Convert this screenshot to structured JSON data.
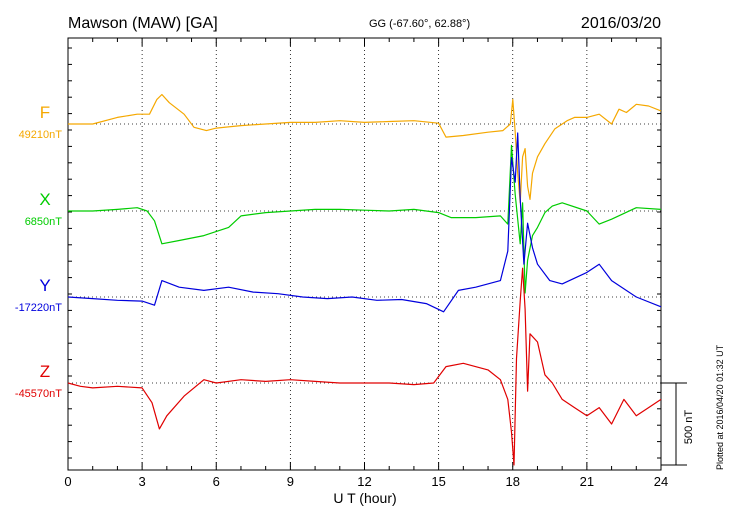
{
  "header": {
    "station": "Mawson (MAW)  [GA]",
    "coords": "GG (-67.60°,  62.88°)",
    "date": "2016/03/20"
  },
  "side_note": "Plotted at 2016/04/20 01:32 UT",
  "chart_data": {
    "type": "line",
    "xlabel": "U T (hour)",
    "xlim": [
      0,
      24
    ],
    "xticks": [
      "0",
      "3",
      "6",
      "9",
      "12",
      "15",
      "18",
      "21",
      "24"
    ],
    "scale_bar_label": "500 nT",
    "scale_bar_nT": 500,
    "series": [
      {
        "name": "F",
        "baseline": "49210nT",
        "color": "#f5a800",
        "points": [
          [
            0,
            0
          ],
          [
            1,
            0
          ],
          [
            2,
            40
          ],
          [
            2.8,
            60
          ],
          [
            3.3,
            60
          ],
          [
            3.6,
            150
          ],
          [
            3.8,
            180
          ],
          [
            4.1,
            130
          ],
          [
            4.7,
            60
          ],
          [
            5.1,
            -20
          ],
          [
            5.6,
            -40
          ],
          [
            6,
            -25
          ],
          [
            7,
            -10
          ],
          [
            8,
            0
          ],
          [
            9,
            10
          ],
          [
            10,
            10
          ],
          [
            11,
            20
          ],
          [
            12,
            10
          ],
          [
            13,
            15
          ],
          [
            14,
            20
          ],
          [
            15,
            5
          ],
          [
            15.3,
            -80
          ],
          [
            16,
            -70
          ],
          [
            17,
            -50
          ],
          [
            17.6,
            -40
          ],
          [
            17.9,
            0
          ],
          [
            18,
            150
          ],
          [
            18.1,
            -50
          ],
          [
            18.2,
            -300
          ],
          [
            18.3,
            -480
          ],
          [
            18.4,
            -200
          ],
          [
            18.5,
            -150
          ],
          [
            18.6,
            -380
          ],
          [
            18.7,
            -460
          ],
          [
            18.8,
            -300
          ],
          [
            19,
            -200
          ],
          [
            19.3,
            -120
          ],
          [
            19.7,
            -30
          ],
          [
            20.2,
            20
          ],
          [
            20.5,
            40
          ],
          [
            21,
            40
          ],
          [
            21.5,
            60
          ],
          [
            22,
            0
          ],
          [
            22.3,
            90
          ],
          [
            22.6,
            70
          ],
          [
            23,
            120
          ],
          [
            23.5,
            110
          ],
          [
            24,
            80
          ]
        ]
      },
      {
        "name": "X",
        "baseline": "6850nT",
        "color": "#00cc00",
        "points": [
          [
            0,
            0
          ],
          [
            1,
            0
          ],
          [
            2,
            10
          ],
          [
            2.8,
            20
          ],
          [
            3.2,
            0
          ],
          [
            3.5,
            -60
          ],
          [
            3.8,
            -200
          ],
          [
            4.5,
            -180
          ],
          [
            5.5,
            -150
          ],
          [
            6.5,
            -100
          ],
          [
            7,
            -30
          ],
          [
            8,
            -10
          ],
          [
            9,
            0
          ],
          [
            10,
            10
          ],
          [
            11,
            10
          ],
          [
            12,
            5
          ],
          [
            13,
            0
          ],
          [
            14,
            10
          ],
          [
            15,
            -10
          ],
          [
            15.5,
            -40
          ],
          [
            16.5,
            -40
          ],
          [
            17.5,
            -30
          ],
          [
            17.8,
            -80
          ],
          [
            17.95,
            400
          ],
          [
            18.1,
            100
          ],
          [
            18.3,
            -200
          ],
          [
            18.4,
            50
          ],
          [
            18.5,
            -500
          ],
          [
            18.6,
            -300
          ],
          [
            18.8,
            -150
          ],
          [
            19,
            -100
          ],
          [
            19.3,
            -10
          ],
          [
            19.6,
            30
          ],
          [
            20,
            50
          ],
          [
            21,
            0
          ],
          [
            21.5,
            -80
          ],
          [
            22,
            -50
          ],
          [
            23,
            20
          ],
          [
            24,
            10
          ]
        ]
      },
      {
        "name": "Y",
        "baseline": "-17220nT",
        "color": "#0000dd",
        "points": [
          [
            0,
            0
          ],
          [
            1,
            -10
          ],
          [
            2,
            -20
          ],
          [
            3,
            -25
          ],
          [
            3.5,
            -50
          ],
          [
            3.8,
            100
          ],
          [
            4.5,
            60
          ],
          [
            5.5,
            40
          ],
          [
            6.5,
            60
          ],
          [
            7.5,
            30
          ],
          [
            8.5,
            20
          ],
          [
            9.5,
            0
          ],
          [
            10.5,
            -10
          ],
          [
            11.5,
            0
          ],
          [
            12.5,
            -20
          ],
          [
            13.5,
            -15
          ],
          [
            14.5,
            -40
          ],
          [
            15.2,
            -90
          ],
          [
            15.8,
            40
          ],
          [
            16.5,
            60
          ],
          [
            17.5,
            100
          ],
          [
            17.8,
            280
          ],
          [
            17.95,
            850
          ],
          [
            18.1,
            700
          ],
          [
            18.2,
            1000
          ],
          [
            18.3,
            600
          ],
          [
            18.45,
            200
          ],
          [
            18.6,
            450
          ],
          [
            18.8,
            300
          ],
          [
            19,
            200
          ],
          [
            19.5,
            100
          ],
          [
            20,
            80
          ],
          [
            21,
            150
          ],
          [
            21.5,
            200
          ],
          [
            22,
            100
          ],
          [
            23,
            0
          ],
          [
            24,
            -60
          ]
        ]
      },
      {
        "name": "Z",
        "baseline": "-45570nT",
        "color": "#e00000",
        "points": [
          [
            0,
            0
          ],
          [
            0.5,
            -20
          ],
          [
            1,
            -30
          ],
          [
            2,
            -20
          ],
          [
            3,
            -30
          ],
          [
            3.4,
            -120
          ],
          [
            3.7,
            -280
          ],
          [
            4,
            -200
          ],
          [
            4.7,
            -80
          ],
          [
            5.5,
            20
          ],
          [
            6,
            0
          ],
          [
            7,
            20
          ],
          [
            8,
            10
          ],
          [
            9,
            20
          ],
          [
            10,
            10
          ],
          [
            11,
            0
          ],
          [
            12,
            0
          ],
          [
            13,
            0
          ],
          [
            14,
            -10
          ],
          [
            14.8,
            0
          ],
          [
            15.3,
            100
          ],
          [
            16,
            120
          ],
          [
            17,
            80
          ],
          [
            17.5,
            20
          ],
          [
            17.8,
            -100
          ],
          [
            17.95,
            -300
          ],
          [
            18.05,
            -500
          ],
          [
            18.15,
            150
          ],
          [
            18.3,
            500
          ],
          [
            18.4,
            700
          ],
          [
            18.5,
            450
          ],
          [
            18.6,
            -50
          ],
          [
            18.7,
            300
          ],
          [
            19,
            250
          ],
          [
            19.3,
            50
          ],
          [
            19.6,
            0
          ],
          [
            20,
            -100
          ],
          [
            20.5,
            -150
          ],
          [
            21,
            -200
          ],
          [
            21.5,
            -150
          ],
          [
            22,
            -250
          ],
          [
            22.5,
            -100
          ],
          [
            23,
            -200
          ],
          [
            23.5,
            -150
          ],
          [
            24,
            -100
          ]
        ]
      }
    ]
  }
}
